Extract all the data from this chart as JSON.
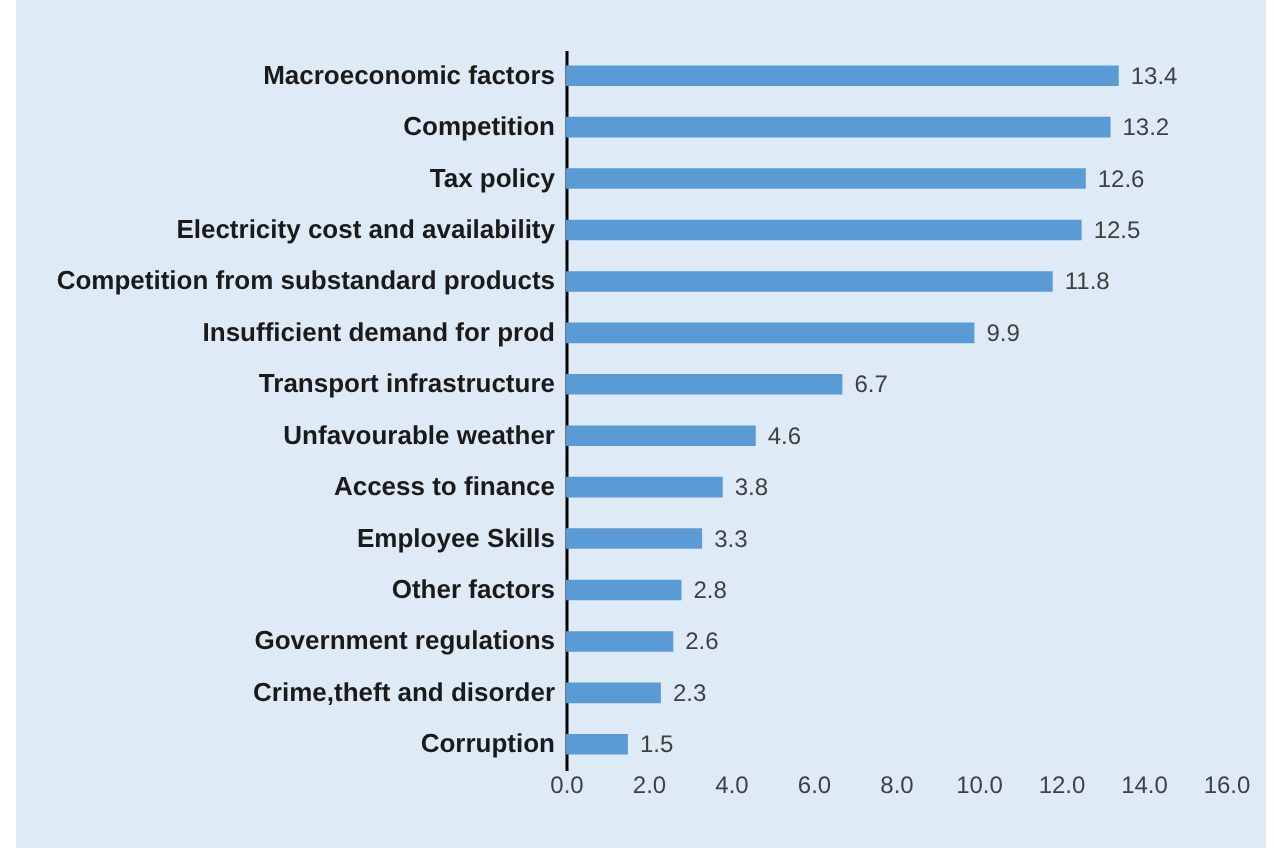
{
  "chart_data": {
    "type": "bar",
    "orientation": "horizontal",
    "categories": [
      "Macroeconomic factors",
      "Competition",
      "Tax policy",
      "Electricity cost and availability",
      "Competition from substandard products",
      "Insufficient demand for prod",
      "Transport infrastructure",
      "Unfavourable weather",
      "Access to finance",
      "Employee Skills",
      "Other factors",
      "Government regulations",
      "Crime,theft and disorder",
      "Corruption"
    ],
    "values": [
      13.4,
      13.2,
      12.6,
      12.5,
      11.8,
      9.9,
      6.7,
      4.6,
      3.8,
      3.3,
      2.8,
      2.6,
      2.3,
      1.5
    ],
    "color": "#5b9bd5",
    "xlim": [
      0,
      16
    ],
    "xticks": [
      {
        "value": 0,
        "label": "0.0"
      },
      {
        "value": 2,
        "label": "2.0"
      },
      {
        "value": 4,
        "label": "4.0"
      },
      {
        "value": 6,
        "label": "6.0"
      },
      {
        "value": 8,
        "label": "8.0"
      },
      {
        "value": 10,
        "label": "10.0"
      },
      {
        "value": 12,
        "label": "12.0"
      },
      {
        "value": 14,
        "label": "14.0"
      },
      {
        "value": 16,
        "label": "16.0"
      }
    ],
    "data_labels": true,
    "grid": false
  }
}
